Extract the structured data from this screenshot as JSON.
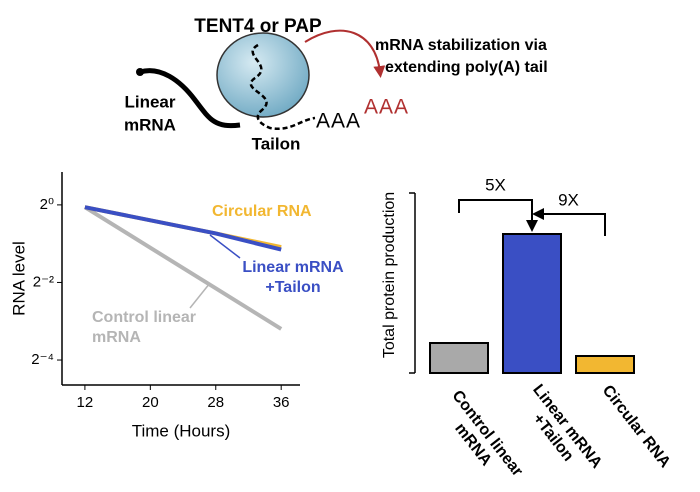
{
  "diagram": {
    "enzyme": "TENT4 or PAP",
    "effect": [
      "mRNA stabilization via",
      "extending poly(A) tail"
    ],
    "substrate": [
      "Linear",
      "mRNA"
    ],
    "tailon": "Tailon",
    "tail_black": "AAA",
    "tail_red": "AAA"
  },
  "chart_data": [
    {
      "type": "line",
      "xlabel": "Time (Hours)",
      "ylabel": "RNA level",
      "x": [
        12,
        28,
        36
      ],
      "series": [
        {
          "name": "Control linear mRNA",
          "color": "#b5b5b5",
          "values": [
            0.96,
            0.225,
            0.109
          ]
        },
        {
          "name": "Circular RNA",
          "color": "#f2b731",
          "values": [
            0.96,
            0.6,
            0.47
          ]
        },
        {
          "name": "Linear mRNA +Tailon",
          "color": "#3a4fc4",
          "values": [
            0.96,
            0.6,
            0.45
          ]
        }
      ],
      "xlim": [
        9.2,
        38.3
      ],
      "xticks": [
        12,
        20,
        28,
        36
      ],
      "ylim": [
        0.04,
        1.8
      ],
      "yscale": "log2",
      "yticks": [
        {
          "value": 1,
          "label": "2⁰"
        },
        {
          "value": 0.25,
          "label": "2⁻²"
        },
        {
          "value": 0.0625,
          "label": "2⁻⁴"
        }
      ]
    },
    {
      "type": "bar",
      "ylabel": "Total protein production",
      "categories": [
        "Control linear mRNA",
        "Linear mRNA +Tailon",
        "Circular RNA"
      ],
      "values": [
        30,
        139,
        17
      ],
      "colors": [
        "#a9a9a9",
        "#3a4fc4",
        "#f2b731"
      ],
      "ylim": [
        0,
        180
      ],
      "annotations": [
        "5X",
        "9X"
      ]
    }
  ]
}
